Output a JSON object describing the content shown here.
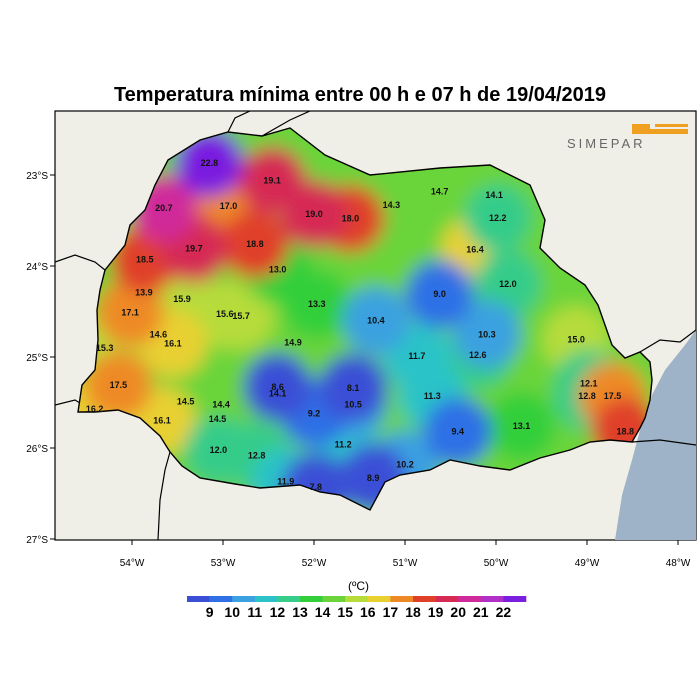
{
  "title": "Temperatura mínima entre 00 h e 07 h de 19/04/2019",
  "logo_text": "SIMEPAR",
  "colors": {
    "ocean": "#9fb3c8",
    "land": "#f0efe7",
    "scale": [
      "#3a4fd6",
      "#2f70e6",
      "#3ba1e0",
      "#2cc3c8",
      "#36cc8a",
      "#33cf3a",
      "#6ad43a",
      "#b6dc3a",
      "#e8d030",
      "#ee8a25",
      "#e0402a",
      "#d62a55",
      "#d02a9a",
      "#b030c8",
      "#7a1fe0"
    ]
  },
  "lat_ticks": [
    {
      "label": "23°S",
      "lat": -23
    },
    {
      "label": "24°S",
      "lat": -24
    },
    {
      "label": "25°S",
      "lat": -25
    },
    {
      "label": "26°S",
      "lat": -26
    },
    {
      "label": "27°S",
      "lat": -27
    }
  ],
  "lon_ticks": [
    {
      "label": "54°W",
      "lon": -54
    },
    {
      "label": "53°W",
      "lon": -53
    },
    {
      "label": "52°W",
      "lon": -52
    },
    {
      "label": "51°W",
      "lon": -51
    },
    {
      "label": "50°W",
      "lon": -50
    },
    {
      "label": "49°W",
      "lon": -49
    },
    {
      "label": "48°W",
      "lon": -48
    }
  ],
  "colorbar": {
    "unit": "(ºC)",
    "labels": [
      "9",
      "10",
      "11",
      "12",
      "13",
      "14",
      "15",
      "16",
      "17",
      "18",
      "19",
      "20",
      "21",
      "22"
    ]
  },
  "stations": [
    {
      "v": "22.8",
      "lat": -22.87,
      "lon": -53.15
    },
    {
      "v": "19.1",
      "lat": -23.06,
      "lon": -52.46
    },
    {
      "v": "20.7",
      "lat": -23.36,
      "lon": -53.65
    },
    {
      "v": "17.0",
      "lat": -23.34,
      "lon": -52.94
    },
    {
      "v": "19.0",
      "lat": -23.43,
      "lon": -52.0
    },
    {
      "v": "18.0",
      "lat": -23.48,
      "lon": -51.6
    },
    {
      "v": "14.3",
      "lat": -23.33,
      "lon": -51.15
    },
    {
      "v": "14.7",
      "lat": -23.18,
      "lon": -50.62
    },
    {
      "v": "14.1",
      "lat": -23.22,
      "lon": -50.02
    },
    {
      "v": "12.2",
      "lat": -23.47,
      "lon": -49.98
    },
    {
      "v": "16.4",
      "lat": -23.82,
      "lon": -50.23
    },
    {
      "v": "19.7",
      "lat": -23.81,
      "lon": -53.32
    },
    {
      "v": "18.8",
      "lat": -23.76,
      "lon": -52.65
    },
    {
      "v": "18.5",
      "lat": -23.93,
      "lon": -53.86
    },
    {
      "v": "13.0",
      "lat": -24.04,
      "lon": -52.4
    },
    {
      "v": "12.0",
      "lat": -24.2,
      "lon": -49.87
    },
    {
      "v": "13.9",
      "lat": -24.29,
      "lon": -53.87
    },
    {
      "v": "15.9",
      "lat": -24.36,
      "lon": -53.45
    },
    {
      "v": "9.0",
      "lat": -24.31,
      "lon": -50.62
    },
    {
      "v": "13.3",
      "lat": -24.42,
      "lon": -51.97
    },
    {
      "v": "17.1",
      "lat": -24.51,
      "lon": -54.02
    },
    {
      "v": "15.6",
      "lat": -24.53,
      "lon": -52.98
    },
    {
      "v": "15.7",
      "lat": -24.55,
      "lon": -52.8
    },
    {
      "v": "10.4",
      "lat": -24.6,
      "lon": -51.32
    },
    {
      "v": "14.6",
      "lat": -24.75,
      "lon": -53.71
    },
    {
      "v": "16.1",
      "lat": -24.85,
      "lon": -53.55
    },
    {
      "v": "10.3",
      "lat": -24.75,
      "lon": -50.1
    },
    {
      "v": "14.9",
      "lat": -24.84,
      "lon": -52.23
    },
    {
      "v": "15.0",
      "lat": -24.81,
      "lon": -49.12
    },
    {
      "v": "15.3",
      "lat": -24.9,
      "lon": -54.3
    },
    {
      "v": "11.7",
      "lat": -24.99,
      "lon": -50.87
    },
    {
      "v": "12.6",
      "lat": -24.98,
      "lon": -50.2
    },
    {
      "v": "17.5",
      "lat": -25.31,
      "lon": -54.15
    },
    {
      "v": "8.6",
      "lat": -25.33,
      "lon": -52.4
    },
    {
      "v": "8.1",
      "lat": -25.34,
      "lon": -51.57
    },
    {
      "v": "12.1",
      "lat": -25.29,
      "lon": -48.98
    },
    {
      "v": "14.1",
      "lat": -25.4,
      "lon": -52.4
    },
    {
      "v": "11.3",
      "lat": -25.43,
      "lon": -50.7
    },
    {
      "v": "12.8",
      "lat": -25.43,
      "lon": -49.0
    },
    {
      "v": "17.5",
      "lat": -25.43,
      "lon": -48.72
    },
    {
      "v": "14.5",
      "lat": -25.49,
      "lon": -53.41
    },
    {
      "v": "14.4",
      "lat": -25.52,
      "lon": -53.02
    },
    {
      "v": "10.5",
      "lat": -25.52,
      "lon": -51.57
    },
    {
      "v": "16.2",
      "lat": -25.57,
      "lon": -54.41
    },
    {
      "v": "9.2",
      "lat": -25.62,
      "lon": -52.0
    },
    {
      "v": "16.1",
      "lat": -25.7,
      "lon": -53.67
    },
    {
      "v": "14.5",
      "lat": -25.68,
      "lon": -53.06
    },
    {
      "v": "13.1",
      "lat": -25.76,
      "lon": -49.72
    },
    {
      "v": "9.4",
      "lat": -25.82,
      "lon": -50.42
    },
    {
      "v": "18.8",
      "lat": -25.82,
      "lon": -48.58
    },
    {
      "v": "11.2",
      "lat": -25.96,
      "lon": -51.68
    },
    {
      "v": "12.0",
      "lat": -26.02,
      "lon": -53.05
    },
    {
      "v": "12.8",
      "lat": -26.08,
      "lon": -52.63
    },
    {
      "v": "10.2",
      "lat": -26.18,
      "lon": -51.0
    },
    {
      "v": "8.9",
      "lat": -26.33,
      "lon": -51.35
    },
    {
      "v": "11.9",
      "lat": -26.37,
      "lon": -52.31
    },
    {
      "v": "7.8",
      "lat": -26.43,
      "lon": -51.98
    }
  ]
}
